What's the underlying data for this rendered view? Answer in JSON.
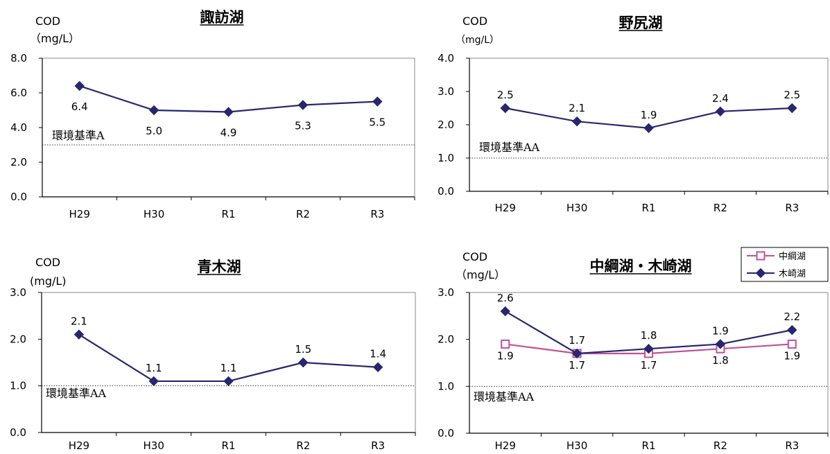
{
  "chart_data": [
    {
      "type": "line",
      "title": "諏訪湖",
      "ylabel_line1": "COD",
      "ylabel_line2": "（mg/L）",
      "categories": [
        "H29",
        "H30",
        "R1",
        "R2",
        "R3"
      ],
      "ylim": [
        0,
        8
      ],
      "yticks": [
        "0.0",
        "2.0",
        "4.0",
        "6.0",
        "8.0"
      ],
      "series": [
        {
          "values": [
            6.4,
            5.0,
            4.9,
            5.3,
            5.5
          ],
          "labels": [
            "6.4",
            "5.0",
            "4.9",
            "5.3",
            "5.5"
          ],
          "color": "#27266e",
          "marker": "diamond",
          "label_position": "below"
        }
      ],
      "standard": {
        "label": "環境基準A",
        "value": 3.0
      },
      "grid": false
    },
    {
      "type": "line",
      "title": "野尻湖",
      "ylabel_line1": "COD",
      "ylabel_line2": "（mg/L）",
      "categories": [
        "H29",
        "H30",
        "R1",
        "R2",
        "R3"
      ],
      "ylim": [
        0,
        4
      ],
      "yticks": [
        "0.0",
        "1.0",
        "2.0",
        "3.0",
        "4.0"
      ],
      "series": [
        {
          "values": [
            2.5,
            2.1,
            1.9,
            2.4,
            2.5
          ],
          "labels": [
            "2.5",
            "2.1",
            "1.9",
            "2.4",
            "2.5"
          ],
          "color": "#27266e",
          "marker": "diamond",
          "label_position": "above"
        }
      ],
      "standard": {
        "label": "環境基準AA",
        "value": 1.0
      },
      "grid": false
    },
    {
      "type": "line",
      "title": "青木湖",
      "ylabel_line1": "COD",
      "ylabel_line2": "(mg/L)",
      "categories": [
        "H29",
        "H30",
        "R1",
        "R2",
        "R3"
      ],
      "ylim": [
        0,
        3
      ],
      "yticks": [
        "0.0",
        "1.0",
        "2.0",
        "3.0"
      ],
      "series": [
        {
          "values": [
            2.1,
            1.1,
            1.1,
            1.5,
            1.4
          ],
          "labels": [
            "2.1",
            "1.1",
            "1.1",
            "1.5",
            "1.4"
          ],
          "color": "#27266e",
          "marker": "diamond",
          "label_position": "above"
        }
      ],
      "standard": {
        "label": "環境基準AA",
        "value": 1.0
      },
      "grid": false
    },
    {
      "type": "line",
      "title": "中綱湖・木崎湖",
      "ylabel_line1": "COD",
      "ylabel_line2": "（mg/L）",
      "categories": [
        "H29",
        "H30",
        "R1",
        "R2",
        "R3"
      ],
      "ylim": [
        0,
        3
      ],
      "yticks": [
        "0.0",
        "1.0",
        "2.0",
        "3.0"
      ],
      "series": [
        {
          "name": "中綱湖",
          "values": [
            1.9,
            1.7,
            1.7,
            1.8,
            1.9
          ],
          "labels": [
            "1.9",
            "1.7",
            "1.7",
            "1.8",
            "1.9"
          ],
          "color": "#c0509a",
          "marker": "square-open",
          "label_position": "below"
        },
        {
          "name": "木崎湖",
          "values": [
            2.6,
            1.7,
            1.8,
            1.9,
            2.2
          ],
          "labels": [
            "2.6",
            "1.7",
            "1.8",
            "1.9",
            "2.2"
          ],
          "color": "#27266e",
          "marker": "diamond",
          "label_position": "above"
        }
      ],
      "standard": {
        "label": "環境基準AA",
        "value": 1.0
      },
      "legend": "top-right",
      "grid": false
    }
  ]
}
